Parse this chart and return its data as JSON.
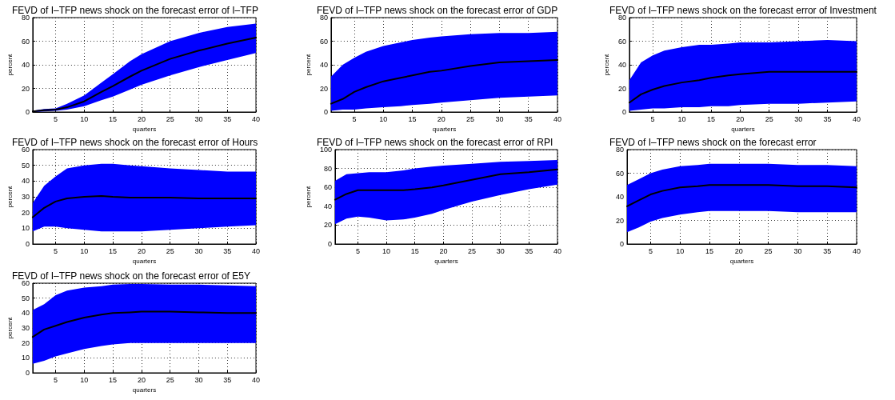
{
  "chart_data": [
    {
      "type": "line",
      "title": "FEVD of I–TFP news shock on the forecast error of I–TFP",
      "xlabel": "quarters",
      "ylabel": "percent",
      "xlim": [
        1,
        40
      ],
      "xticks": [
        5,
        10,
        15,
        20,
        25,
        30,
        35,
        40
      ],
      "ylim": [
        0,
        80
      ],
      "yticks": [
        0,
        20,
        40,
        60,
        80
      ],
      "grid": true,
      "line_style": "solid",
      "x": [
        1,
        3,
        5,
        7,
        10,
        13,
        15,
        18,
        20,
        25,
        30,
        35,
        40
      ],
      "series": [
        {
          "color": "#000000",
          "values": [
            0.5,
            1.5,
            2,
            4,
            9,
            17,
            22,
            30,
            35,
            45,
            52,
            58,
            63
          ],
          "lower": [
            0,
            0.5,
            1,
            2,
            5,
            10,
            13,
            19,
            23,
            31,
            38,
            44,
            50
          ],
          "upper": [
            1,
            2.5,
            3,
            7,
            14,
            25,
            32,
            43,
            49,
            60,
            67,
            72,
            75
          ]
        }
      ]
    },
    {
      "type": "line",
      "title": "FEVD of I–TFP news shock on the forecast error of GDP",
      "xlabel": "quarters",
      "ylabel": "percent",
      "xlim": [
        1,
        40
      ],
      "xticks": [
        5,
        10,
        15,
        20,
        25,
        30,
        35,
        40
      ],
      "ylim": [
        0,
        80
      ],
      "yticks": [
        0,
        20,
        40,
        60,
        80
      ],
      "grid": true,
      "line_style": "solid",
      "x": [
        1,
        3,
        5,
        7,
        10,
        13,
        15,
        18,
        20,
        25,
        30,
        35,
        40
      ],
      "series": [
        {
          "color": "#000000",
          "values": [
            7,
            11,
            17,
            21,
            26,
            29,
            31,
            34,
            35,
            39,
            42,
            43,
            44
          ],
          "lower": [
            1,
            2,
            2,
            3,
            4,
            5,
            6,
            7,
            8,
            10,
            12,
            13,
            14
          ],
          "upper": [
            30,
            40,
            46,
            51,
            56,
            59,
            61,
            63,
            64,
            66,
            67,
            67,
            68
          ]
        }
      ]
    },
    {
      "type": "line",
      "title": "FEVD of I–TFP news shock on the forecast error of Investment",
      "xlabel": "quarters",
      "ylabel": "percent",
      "xlim": [
        1,
        40
      ],
      "xticks": [
        5,
        10,
        15,
        20,
        25,
        30,
        35,
        40
      ],
      "ylim": [
        0,
        80
      ],
      "yticks": [
        0,
        20,
        40,
        60,
        80
      ],
      "grid": true,
      "line_style": "solid",
      "x": [
        1,
        3,
        5,
        7,
        10,
        13,
        15,
        18,
        20,
        25,
        30,
        35,
        40
      ],
      "series": [
        {
          "color": "#000000",
          "values": [
            8,
            15,
            19,
            22,
            25,
            27,
            29,
            31,
            32,
            34,
            34,
            34,
            34
          ],
          "lower": [
            1,
            2,
            3,
            3,
            4,
            4,
            5,
            5,
            6,
            7,
            7,
            8,
            9
          ],
          "upper": [
            27,
            42,
            48,
            52,
            55,
            57,
            57,
            58,
            59,
            59,
            60,
            61,
            60
          ]
        }
      ]
    },
    {
      "type": "line",
      "title": "FEVD of I–TFP news shock on the forecast error of Hours",
      "xlabel": "quarters",
      "ylabel": "percent",
      "xlim": [
        1,
        40
      ],
      "xticks": [
        5,
        10,
        15,
        20,
        25,
        30,
        35,
        40
      ],
      "ylim": [
        0,
        60
      ],
      "yticks": [
        0,
        10,
        20,
        30,
        40,
        50,
        60
      ],
      "grid": true,
      "line_style": "solid",
      "x": [
        1,
        3,
        5,
        7,
        10,
        13,
        15,
        18,
        20,
        25,
        30,
        35,
        40
      ],
      "series": [
        {
          "color": "#000000",
          "values": [
            17,
            23,
            27,
            29,
            30,
            30.5,
            30,
            29.5,
            29.5,
            29.5,
            29,
            29,
            29
          ],
          "lower": [
            8,
            11,
            11,
            10,
            9,
            8,
            8,
            8,
            8,
            9,
            10,
            11,
            12
          ],
          "upper": [
            26,
            37,
            43,
            48,
            50,
            51,
            51,
            50,
            49.5,
            48,
            47,
            46,
            46
          ]
        }
      ]
    },
    {
      "type": "line",
      "title": "FEVD of I–TFP news shock on the forecast error of RPI",
      "xlabel": "quarters",
      "ylabel": "percent",
      "xlim": [
        1,
        40
      ],
      "xticks": [
        5,
        10,
        15,
        20,
        25,
        30,
        35,
        40
      ],
      "ylim": [
        0,
        100
      ],
      "yticks": [
        0,
        20,
        40,
        60,
        80,
        100
      ],
      "grid": true,
      "line_style": "solid",
      "x": [
        1,
        3,
        5,
        7,
        10,
        13,
        15,
        18,
        20,
        25,
        30,
        35,
        40
      ],
      "series": [
        {
          "color": "#000000",
          "values": [
            47,
            53,
            57,
            57,
            57,
            57,
            58,
            60,
            62,
            68,
            74,
            76,
            79
          ],
          "lower": [
            21,
            27,
            29,
            28,
            25,
            26,
            28,
            32,
            36,
            45,
            52,
            58,
            63
          ],
          "upper": [
            67,
            74,
            75,
            76,
            76,
            78,
            80,
            82,
            83,
            85,
            87,
            88,
            89
          ]
        }
      ]
    },
    {
      "type": "line",
      "title": "FEVD of I–TFP news shock on the forecast error",
      "xlabel": "quarters",
      "xlim": [
        1,
        40
      ],
      "xticks": [
        5,
        10,
        15,
        20,
        25,
        30,
        35,
        40
      ],
      "ylim": [
        0,
        80
      ],
      "yticks": [
        0,
        20,
        40,
        60,
        80
      ],
      "grid": true,
      "line_style": "solid",
      "x": [
        1,
        3,
        5,
        7,
        10,
        13,
        15,
        18,
        20,
        25,
        30,
        35,
        40
      ],
      "series": [
        {
          "color": "#000000",
          "values": [
            32,
            37,
            42,
            45,
            48,
            49,
            50,
            50,
            50,
            50,
            49,
            49,
            48
          ],
          "lower": [
            10,
            14,
            19,
            22,
            25,
            27,
            28,
            28,
            28,
            28,
            27,
            27,
            27
          ],
          "upper": [
            50,
            55,
            60,
            63,
            66,
            67,
            68,
            68,
            68,
            68,
            67,
            67,
            66
          ]
        }
      ]
    },
    {
      "type": "line",
      "title": "FEVD of I–TFP news shock on the forecast error of E5Y",
      "xlabel": "quarters",
      "ylabel": "percent",
      "xlim": [
        1,
        40
      ],
      "xticks": [
        5,
        10,
        15,
        20,
        25,
        30,
        35,
        40
      ],
      "ylim": [
        0,
        60
      ],
      "yticks": [
        0,
        10,
        20,
        30,
        40,
        50,
        60
      ],
      "grid": true,
      "line_style": "solid",
      "x": [
        1,
        3,
        5,
        7,
        10,
        13,
        15,
        18,
        20,
        25,
        30,
        35,
        40
      ],
      "series": [
        {
          "color": "#000000",
          "values": [
            24,
            29,
            31.5,
            34,
            37,
            39,
            40,
            40.5,
            41,
            41,
            40.5,
            40,
            40
          ],
          "lower": [
            6,
            8,
            11,
            13,
            16,
            18,
            19,
            20,
            20,
            20,
            20,
            20,
            20
          ],
          "upper": [
            42,
            46,
            52,
            55,
            57,
            58,
            59,
            59.5,
            59.5,
            59,
            59,
            58.5,
            58
          ]
        }
      ]
    }
  ]
}
